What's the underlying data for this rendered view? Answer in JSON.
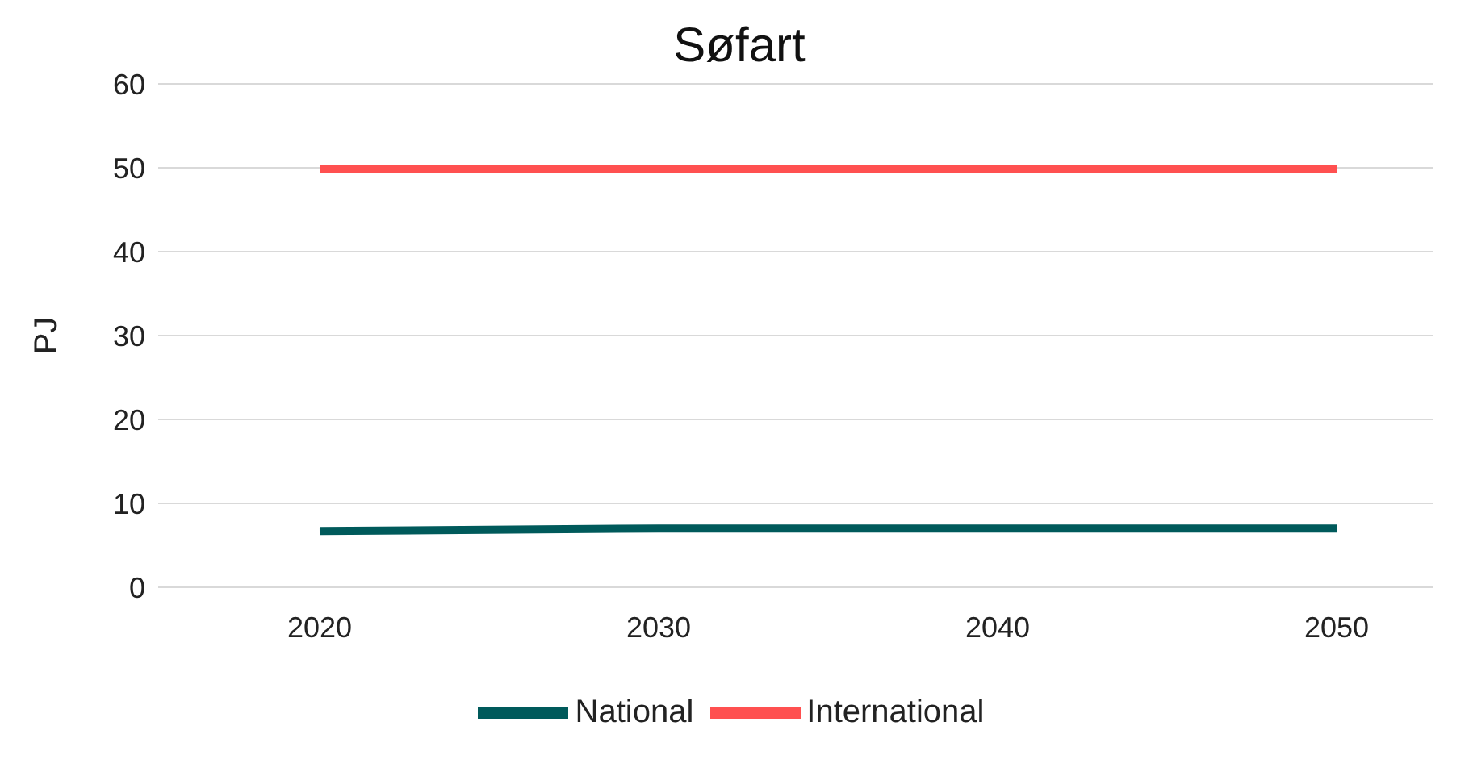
{
  "chart_data": {
    "type": "line",
    "title": "Søfart",
    "ylabel": "PJ",
    "categories": [
      "2020",
      "2030",
      "2040",
      "2050"
    ],
    "series": [
      {
        "name": "National",
        "color": "#005a5b",
        "values": [
          6.7,
          7.0,
          7.0,
          7.0
        ]
      },
      {
        "name": "International",
        "color": "#ff5050",
        "values": [
          49.8,
          49.8,
          49.8,
          49.8
        ]
      }
    ],
    "ylim": [
      0,
      60
    ],
    "yticks": [
      0,
      10,
      20,
      30,
      40,
      50,
      60
    ],
    "grid": "y",
    "legend": "bottom",
    "marker": "none",
    "line_style": "solid"
  }
}
